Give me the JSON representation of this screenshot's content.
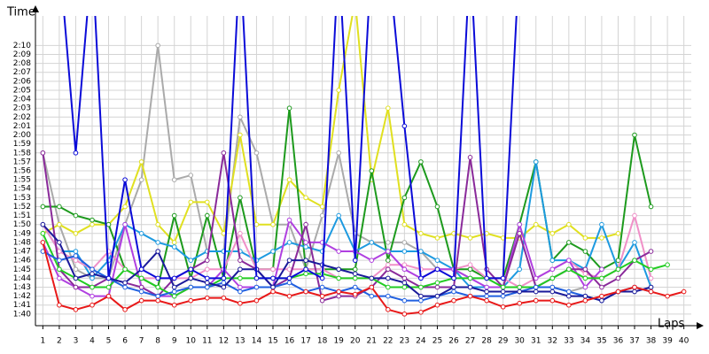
{
  "chart_data": {
    "type": "line",
    "y_label": "Time",
    "x_label": "Laps",
    "x": [
      1,
      2,
      3,
      4,
      5,
      6,
      7,
      8,
      9,
      10,
      11,
      12,
      13,
      14,
      15,
      16,
      17,
      18,
      19,
      20,
      21,
      22,
      23,
      24,
      25,
      26,
      27,
      28,
      29,
      30,
      31,
      32,
      33,
      34,
      35,
      36,
      37,
      38,
      39,
      40
    ],
    "xlim": [
      0.55,
      40.45
    ],
    "xticks": [
      1,
      2,
      3,
      4,
      5,
      6,
      7,
      8,
      9,
      10,
      11,
      12,
      13,
      14,
      15,
      16,
      17,
      18,
      19,
      20,
      21,
      22,
      23,
      24,
      25,
      26,
      27,
      28,
      29,
      30,
      31,
      32,
      33,
      34,
      35,
      36,
      37,
      38,
      39,
      40
    ],
    "ylim": [
      98.7,
      133.3
    ],
    "yticks": [
      {
        "value": 100,
        "label": "1:40"
      },
      {
        "value": 101,
        "label": "1:41"
      },
      {
        "value": 102,
        "label": "1:42"
      },
      {
        "value": 103,
        "label": "1:43"
      },
      {
        "value": 104,
        "label": "1:44"
      },
      {
        "value": 105,
        "label": "1:45"
      },
      {
        "value": 106,
        "label": "1:46"
      },
      {
        "value": 107,
        "label": "1:47"
      },
      {
        "value": 108,
        "label": "1:48"
      },
      {
        "value": 109,
        "label": "1:49"
      },
      {
        "value": 110,
        "label": "1:50"
      },
      {
        "value": 111,
        "label": "1:51"
      },
      {
        "value": 112,
        "label": "1:52"
      },
      {
        "value": 113,
        "label": "1:53"
      },
      {
        "value": 114,
        "label": "1:54"
      },
      {
        "value": 115,
        "label": "1:55"
      },
      {
        "value": 116,
        "label": "1:56"
      },
      {
        "value": 117,
        "label": "1:57"
      },
      {
        "value": 118,
        "label": "1:58"
      },
      {
        "value": 119,
        "label": "1:59"
      },
      {
        "value": 120,
        "label": "2:00"
      },
      {
        "value": 121,
        "label": "2:01"
      },
      {
        "value": 122,
        "label": "2:02"
      },
      {
        "value": 123,
        "label": "2:03"
      },
      {
        "value": 124,
        "label": "2:04"
      },
      {
        "value": 125,
        "label": "2:05"
      },
      {
        "value": 126,
        "label": "2:06"
      },
      {
        "value": 127,
        "label": "2:07"
      },
      {
        "value": 128,
        "label": "2:08"
      },
      {
        "value": 129,
        "label": "2:09"
      },
      {
        "value": 130,
        "label": "2:10"
      }
    ],
    "grid": true,
    "series": [
      {
        "color": "#aaaaaa",
        "values": [
          118,
          110,
          105,
          104,
          104,
          110,
          115,
          130,
          115,
          115.5,
          107,
          107,
          122,
          118,
          110,
          110,
          105,
          111,
          118,
          109,
          108,
          108,
          108,
          107,
          105,
          105,
          104,
          104,
          103,
          103,
          103,
          103,
          102.5,
          103,
          null,
          null,
          null,
          null,
          null,
          null
        ]
      },
      {
        "color": "#e0e020",
        "values": [
          109,
          110,
          109,
          110,
          110,
          112,
          117,
          110,
          108,
          112.5,
          112.5,
          109,
          120,
          110,
          110,
          115,
          113,
          112,
          125,
          135,
          115,
          123,
          110,
          109,
          108.5,
          109,
          108.5,
          109,
          108.5,
          108.5,
          110,
          109,
          110,
          108.5,
          108.5,
          109,
          null,
          null,
          null,
          null
        ]
      },
      {
        "color": "#1d9a1d",
        "values": [
          112,
          112,
          111,
          110.5,
          110,
          105,
          104,
          103,
          111,
          104,
          111,
          104,
          113,
          105,
          105,
          123,
          105,
          105,
          105,
          105,
          116,
          106,
          113,
          117,
          112,
          105,
          105,
          104,
          104,
          110,
          117,
          106,
          108,
          107,
          105,
          106,
          120,
          112,
          null,
          null
        ]
      },
      {
        "color": "#1d9ae0",
        "values": [
          110,
          107,
          107,
          104,
          106,
          110,
          109,
          108,
          107.5,
          106,
          107,
          107,
          107,
          106,
          107,
          108,
          107.5,
          107,
          111,
          107,
          108,
          107,
          107,
          107,
          106,
          105,
          103,
          103,
          103,
          105,
          117,
          106,
          106,
          105,
          110,
          105,
          108,
          103,
          null,
          null
        ]
      },
      {
        "color": "#f090c8",
        "values": [
          110,
          107,
          106,
          105,
          107,
          105,
          104,
          104,
          104,
          104,
          105,
          105,
          109,
          105,
          105,
          105,
          105,
          105,
          104,
          104,
          104,
          105.5,
          105.5,
          105,
          105,
          105,
          105.5,
          104,
          104,
          103,
          104,
          105,
          106,
          104.5,
          104,
          105,
          111,
          104,
          null,
          null
        ]
      },
      {
        "color": "#b040e0",
        "values": [
          108,
          104,
          103,
          102,
          102,
          110,
          103,
          102,
          102,
          103,
          103,
          105,
          103,
          103,
          103,
          110.5,
          108,
          108,
          107,
          107,
          106,
          107,
          105,
          104,
          105,
          105,
          104,
          103,
          103,
          110,
          104,
          105,
          106,
          103,
          105,
          null,
          null,
          null,
          null,
          null
        ]
      },
      {
        "color": "#8a2a9a",
        "values": [
          118,
          105,
          103,
          103,
          104,
          103.5,
          103,
          102,
          104,
          105,
          106,
          118,
          106,
          105,
          103,
          104,
          110,
          101.5,
          102,
          102,
          103,
          105,
          104,
          103,
          103,
          103,
          117.5,
          105,
          103,
          109,
          103,
          104,
          105,
          105,
          103,
          104,
          106,
          107,
          null,
          null
        ]
      },
      {
        "color": "#22cc22",
        "values": [
          109,
          105,
          104,
          103,
          103,
          105,
          104,
          103,
          102,
          103,
          103,
          104,
          104,
          104,
          104,
          104,
          104.5,
          104.5,
          104,
          104,
          104,
          103,
          103,
          103,
          103.5,
          104,
          104,
          104,
          103,
          103,
          103,
          104,
          105,
          104,
          104,
          105,
          106,
          105,
          105.5,
          null
        ]
      },
      {
        "color": "#2060e0",
        "values": [
          107,
          106,
          106.5,
          105,
          104,
          103,
          102.5,
          102,
          102.5,
          103,
          103,
          103.5,
          102.5,
          103,
          103,
          103.5,
          102.5,
          103,
          102.5,
          103,
          102,
          102,
          101.5,
          101.5,
          102,
          102.5,
          102,
          102,
          102,
          102.5,
          103,
          103,
          102.5,
          102,
          101.5,
          102.5,
          103,
          102.5,
          null,
          null
        ]
      },
      {
        "color": "#1a1a9a",
        "values": [
          110,
          108,
          104,
          104.5,
          104,
          103.5,
          105,
          107,
          103,
          104,
          103.5,
          103,
          105,
          105,
          103,
          106,
          106,
          105.5,
          105,
          104.5,
          104,
          104,
          103.5,
          102,
          102,
          103,
          103,
          102.5,
          102.5,
          102.5,
          102.5,
          102.5,
          102,
          102,
          101.5,
          102.5,
          102.5,
          103,
          null,
          null
        ]
      },
      {
        "color": "#0b0bd8",
        "values": [
          135,
          140,
          118,
          140,
          104,
          115,
          105,
          104,
          104,
          105,
          104,
          104,
          140,
          104,
          104,
          104,
          105,
          104,
          140,
          106,
          140,
          140,
          121,
          104,
          105,
          104,
          140,
          104,
          104,
          140,
          null,
          null,
          null,
          null,
          null,
          null,
          null,
          null,
          null,
          null
        ]
      },
      {
        "color": "#e81818",
        "values": [
          108,
          101,
          100.5,
          101,
          102,
          100.5,
          101.5,
          101.5,
          101,
          101.5,
          101.8,
          101.8,
          101.2,
          101.5,
          102.5,
          102,
          102.5,
          102,
          102.5,
          102.2,
          103,
          100.5,
          100,
          100.2,
          101,
          101.5,
          102,
          101.5,
          100.8,
          101.2,
          101.5,
          101.5,
          101,
          101.5,
          102,
          102.5,
          103,
          102.5,
          102,
          102.5
        ]
      }
    ]
  }
}
